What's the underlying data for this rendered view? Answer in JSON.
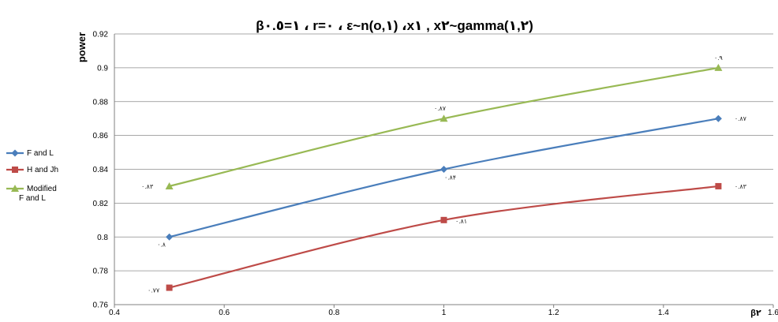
{
  "chart_data": {
    "type": "line",
    "title": "β١=٠.٥ ، r=٠ ، ε~n(o,١) ،x١ , x٢~gamma(١,٢)",
    "ylabel": "power",
    "xlabel": "β٢",
    "xlim": [
      0.4,
      1.6
    ],
    "ylim": [
      0.76,
      0.92
    ],
    "x_ticks": [
      "0.4",
      "0.6",
      "0.8",
      "1",
      "1.2",
      "1.4",
      "1.6"
    ],
    "y_ticks": [
      "0.76",
      "0.78",
      "0.8",
      "0.82",
      "0.84",
      "0.86",
      "0.88",
      "0.9",
      "0.92"
    ],
    "grid": "horizontal",
    "legend_position": "left",
    "x": [
      0.5,
      1,
      1.5
    ],
    "series": [
      {
        "name": "F and L",
        "values": [
          0.8,
          0.84,
          0.87
        ],
        "color": "#4a7ebb",
        "marker": "diamond",
        "labels": [
          "٠.٨",
          "٠.٨۴",
          "٠.٨٧"
        ]
      },
      {
        "name": "H and Jh",
        "values": [
          0.77,
          0.81,
          0.83
        ],
        "color": "#be4b48",
        "marker": "square",
        "labels": [
          "٠.٧٧",
          "٠.٨١",
          "٠.٨٣"
        ]
      },
      {
        "name": "Modified F and L",
        "values": [
          0.83,
          0.87,
          0.9
        ],
        "color": "#98b954",
        "marker": "triangle",
        "labels": [
          "٠.٨٣",
          "٠.٨٧",
          "٠.٩"
        ]
      }
    ]
  }
}
